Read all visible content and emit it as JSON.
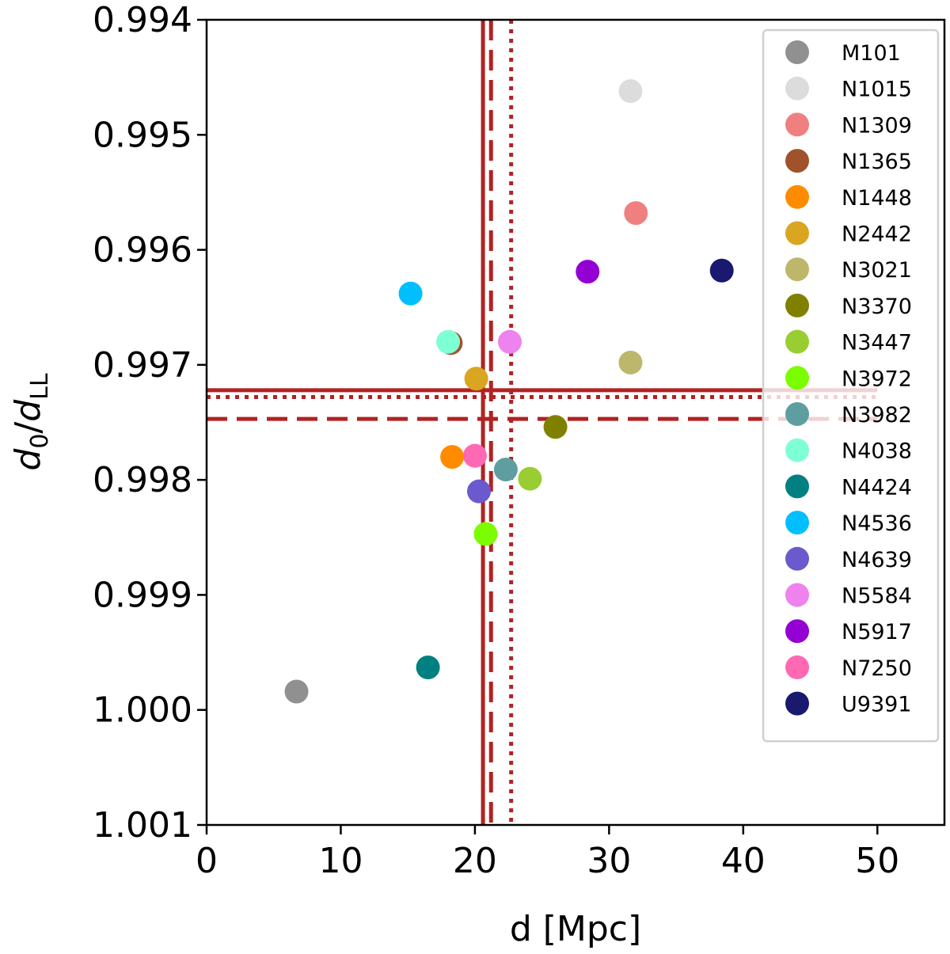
{
  "chart_data": {
    "type": "scatter",
    "title": "",
    "xlabel": "d [Mpc]",
    "ylabel": {
      "base": "d",
      "sub0": "0",
      "slash": "/",
      "base2": "d",
      "sub1": "LL"
    },
    "xlim": [
      0,
      55
    ],
    "ylim": [
      1.001,
      0.994
    ],
    "y_inverted": true,
    "xticks": [
      0,
      10,
      20,
      30,
      40,
      50
    ],
    "yticks": [
      0.994,
      0.995,
      0.996,
      0.997,
      0.998,
      0.999,
      1.0,
      1.001
    ],
    "ytick_labels": [
      "0.994",
      "0.995",
      "0.996",
      "0.997",
      "0.998",
      "0.999",
      "1.000",
      "1.001"
    ],
    "legend_position": "top-right",
    "points": [
      {
        "name": "M101",
        "x": 6.7,
        "y": 0.99984,
        "color": "#909090"
      },
      {
        "name": "N1015",
        "x": 31.6,
        "y": 0.99462,
        "color": "#dcdcdc"
      },
      {
        "name": "N1309",
        "x": 32.0,
        "y": 0.99568,
        "color": "#f08080"
      },
      {
        "name": "N1365",
        "x": 18.2,
        "y": 0.99681,
        "color": "#a0522d"
      },
      {
        "name": "N1448",
        "x": 18.3,
        "y": 0.9978,
        "color": "#ff8c00"
      },
      {
        "name": "N2442",
        "x": 20.1,
        "y": 0.99712,
        "color": "#daa520"
      },
      {
        "name": "N3021",
        "x": 31.6,
        "y": 0.99698,
        "color": "#bdb76b"
      },
      {
        "name": "N3370",
        "x": 26.0,
        "y": 0.99754,
        "color": "#808000"
      },
      {
        "name": "N3447",
        "x": 24.1,
        "y": 0.99799,
        "color": "#9acd32"
      },
      {
        "name": "N3972",
        "x": 20.8,
        "y": 0.99847,
        "color": "#7cfc00"
      },
      {
        "name": "N3982",
        "x": 22.3,
        "y": 0.99791,
        "color": "#5f9ea0"
      },
      {
        "name": "N4038",
        "x": 18.0,
        "y": 0.9968,
        "color": "#7fffd4"
      },
      {
        "name": "N4424",
        "x": 16.5,
        "y": 0.99963,
        "color": "#008080"
      },
      {
        "name": "N4536",
        "x": 15.2,
        "y": 0.99638,
        "color": "#00bfff"
      },
      {
        "name": "N4639",
        "x": 20.3,
        "y": 0.9981,
        "color": "#6a5acd"
      },
      {
        "name": "N5584",
        "x": 22.6,
        "y": 0.9968,
        "color": "#ee82ee"
      },
      {
        "name": "N5917",
        "x": 28.4,
        "y": 0.99619,
        "color": "#9400d3"
      },
      {
        "name": "N7250",
        "x": 20.0,
        "y": 0.99779,
        "color": "#ff69b4"
      },
      {
        "name": "U9391",
        "x": 38.4,
        "y": 0.99618,
        "color": "#191970"
      }
    ],
    "reference_lines": [
      {
        "orientation": "vertical",
        "value": 20.6,
        "style": "solid",
        "color": "#b22222"
      },
      {
        "orientation": "vertical",
        "value": 21.2,
        "style": "dashed",
        "color": "#b22222"
      },
      {
        "orientation": "vertical",
        "value": 22.7,
        "style": "dotted",
        "color": "#b22222"
      },
      {
        "orientation": "horizontal",
        "value": 0.99722,
        "style": "solid",
        "color": "#b22222",
        "x_range": [
          0,
          50
        ]
      },
      {
        "orientation": "horizontal",
        "value": 0.99728,
        "style": "dotted",
        "color": "#b22222",
        "x_range": [
          0,
          50
        ]
      },
      {
        "orientation": "horizontal",
        "value": 0.99747,
        "style": "dashed",
        "color": "#b22222",
        "x_range": [
          0,
          50
        ]
      }
    ]
  }
}
